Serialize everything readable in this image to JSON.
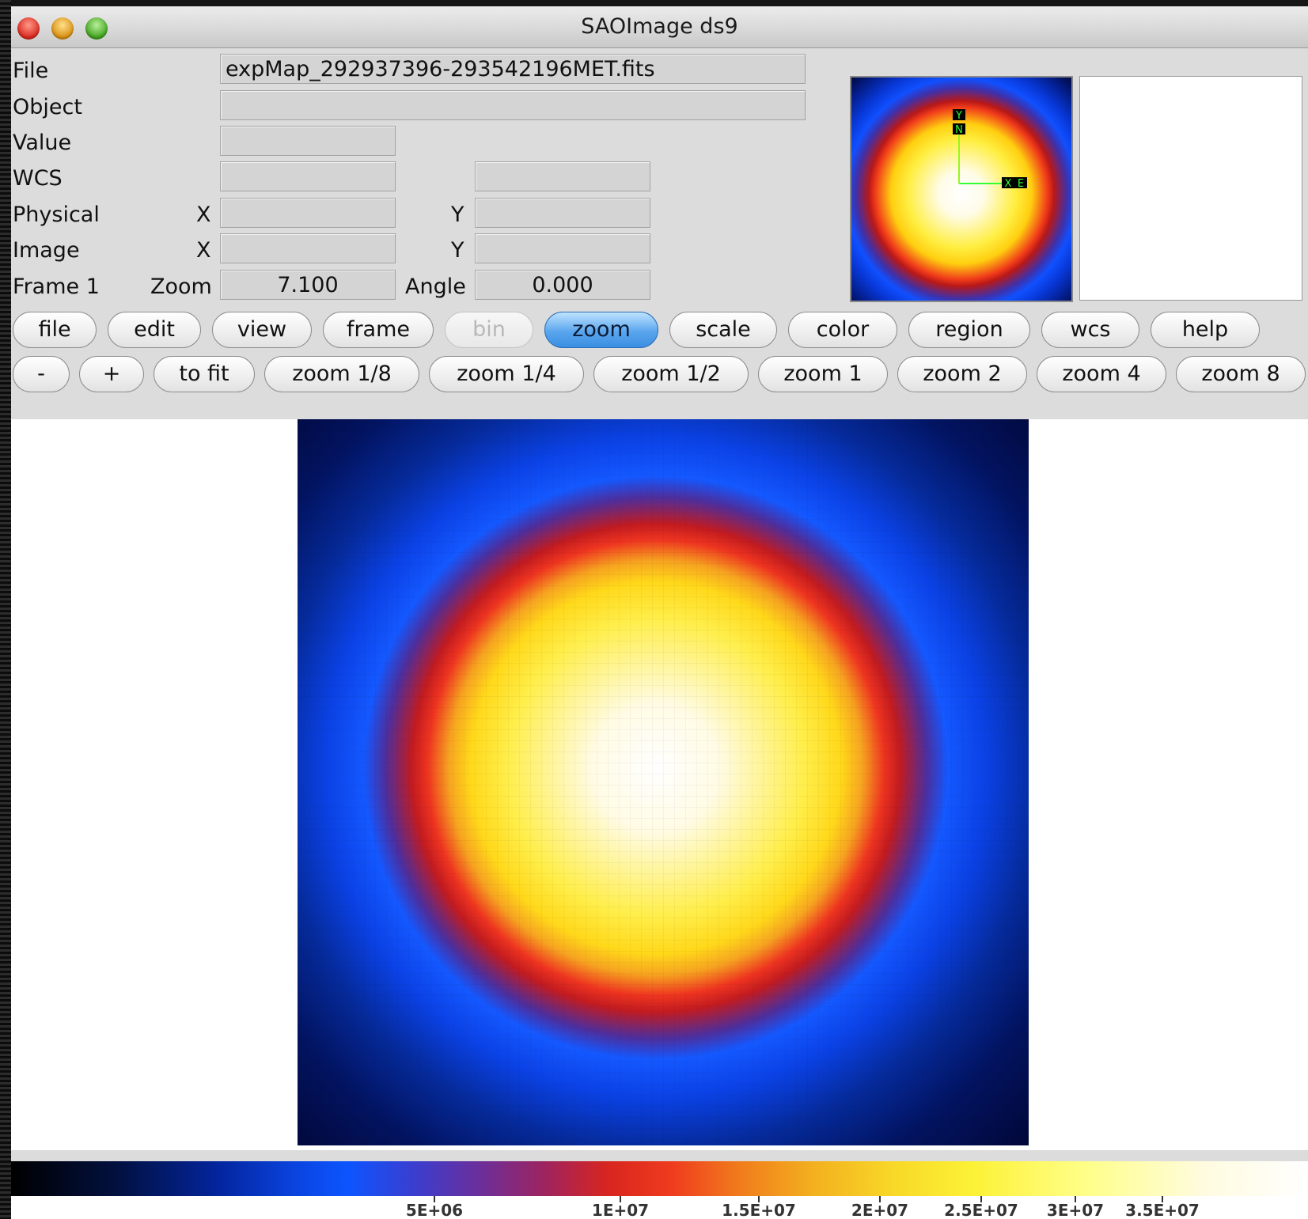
{
  "window": {
    "title": "SAOImage ds9"
  },
  "info": {
    "file_label": "File",
    "file_value": "expMap_292937396-293542196MET.fits",
    "object_label": "Object",
    "object_value": "",
    "value_label": "Value",
    "value_value": "",
    "wcs_label": "WCS",
    "physical_label": "Physical",
    "image_label": "Image",
    "frame_label": "Frame 1",
    "x_label": "X",
    "y_label": "Y",
    "zoom_label": "Zoom",
    "zoom_value": "7.100",
    "angle_label": "Angle",
    "angle_value": "0.000"
  },
  "panner": {
    "compass_labels": [
      "Y",
      "N",
      "X",
      "E"
    ],
    "image_colors": [
      "#ffffff",
      "#ffee40",
      "#f03a1a",
      "#1050ff",
      "#020a40"
    ]
  },
  "menu": {
    "buttons": [
      {
        "label": "file"
      },
      {
        "label": "edit"
      },
      {
        "label": "view"
      },
      {
        "label": "frame"
      },
      {
        "label": "bin",
        "disabled": true
      },
      {
        "label": "zoom",
        "active": true
      },
      {
        "label": "scale"
      },
      {
        "label": "color"
      },
      {
        "label": "region"
      },
      {
        "label": "wcs"
      },
      {
        "label": "help"
      }
    ]
  },
  "zoom_bar": {
    "buttons": [
      {
        "label": "-"
      },
      {
        "label": "+"
      },
      {
        "label": "to fit"
      },
      {
        "label": "zoom 1/8"
      },
      {
        "label": "zoom 1/4"
      },
      {
        "label": "zoom 1/2"
      },
      {
        "label": "zoom 1"
      },
      {
        "label": "zoom 2"
      },
      {
        "label": "zoom 4"
      },
      {
        "label": "zoom 8"
      }
    ]
  },
  "colorbar": {
    "colormap": "sls-like (black-blue-red-yellow-white)",
    "ticks": [
      {
        "value": 5000000,
        "label": "5E+06"
      },
      {
        "value": 10000000,
        "label": "1E+07"
      },
      {
        "value": 15000000,
        "label": "1.5E+07"
      },
      {
        "value": 20000000,
        "label": "2E+07"
      },
      {
        "value": 25000000,
        "label": "2.5E+07"
      },
      {
        "value": 30000000,
        "label": "3E+07"
      },
      {
        "value": 35000000,
        "label": "3.5E+07"
      }
    ]
  }
}
